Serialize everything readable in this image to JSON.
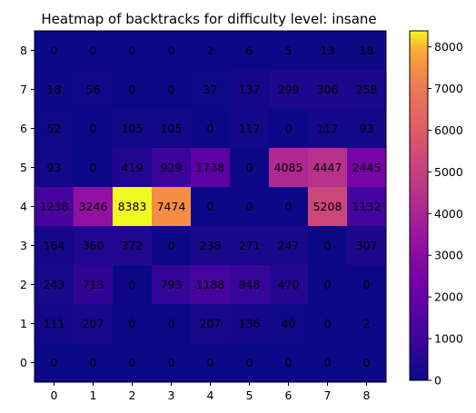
{
  "chart_data": {
    "type": "heatmap",
    "title": "Heatmap of backtracks for difficulty level: insane",
    "xlabel": "",
    "ylabel": "",
    "x_categories": [
      "0",
      "1",
      "2",
      "3",
      "4",
      "5",
      "6",
      "7",
      "8"
    ],
    "y_categories": [
      "8",
      "7",
      "6",
      "5",
      "4",
      "3",
      "2",
      "1",
      "0"
    ],
    "values": [
      [
        0,
        0,
        0,
        0,
        2,
        6,
        5,
        13,
        18
      ],
      [
        18,
        56,
        0,
        0,
        37,
        137,
        299,
        306,
        258
      ],
      [
        52,
        0,
        105,
        105,
        0,
        117,
        0,
        117,
        93
      ],
      [
        93,
        0,
        419,
        929,
        1738,
        0,
        4085,
        4447,
        2445
      ],
      [
        1238,
        3246,
        8383,
        7474,
        0,
        0,
        0,
        5208,
        1132
      ],
      [
        164,
        360,
        372,
        0,
        238,
        271,
        247,
        0,
        307
      ],
      [
        243,
        713,
        0,
        793,
        1188,
        848,
        470,
        0,
        0
      ],
      [
        111,
        207,
        0,
        0,
        207,
        136,
        40,
        0,
        2
      ],
      [
        0,
        0,
        0,
        0,
        0,
        0,
        0,
        0,
        0
      ]
    ],
    "colormap": "plasma",
    "colorbar": {
      "range": [
        0,
        8383
      ],
      "ticks": [
        "0",
        "1000",
        "2000",
        "3000",
        "4000",
        "5000",
        "6000",
        "7000",
        "8000"
      ]
    },
    "grid": false,
    "legend": "colorbar-right"
  }
}
